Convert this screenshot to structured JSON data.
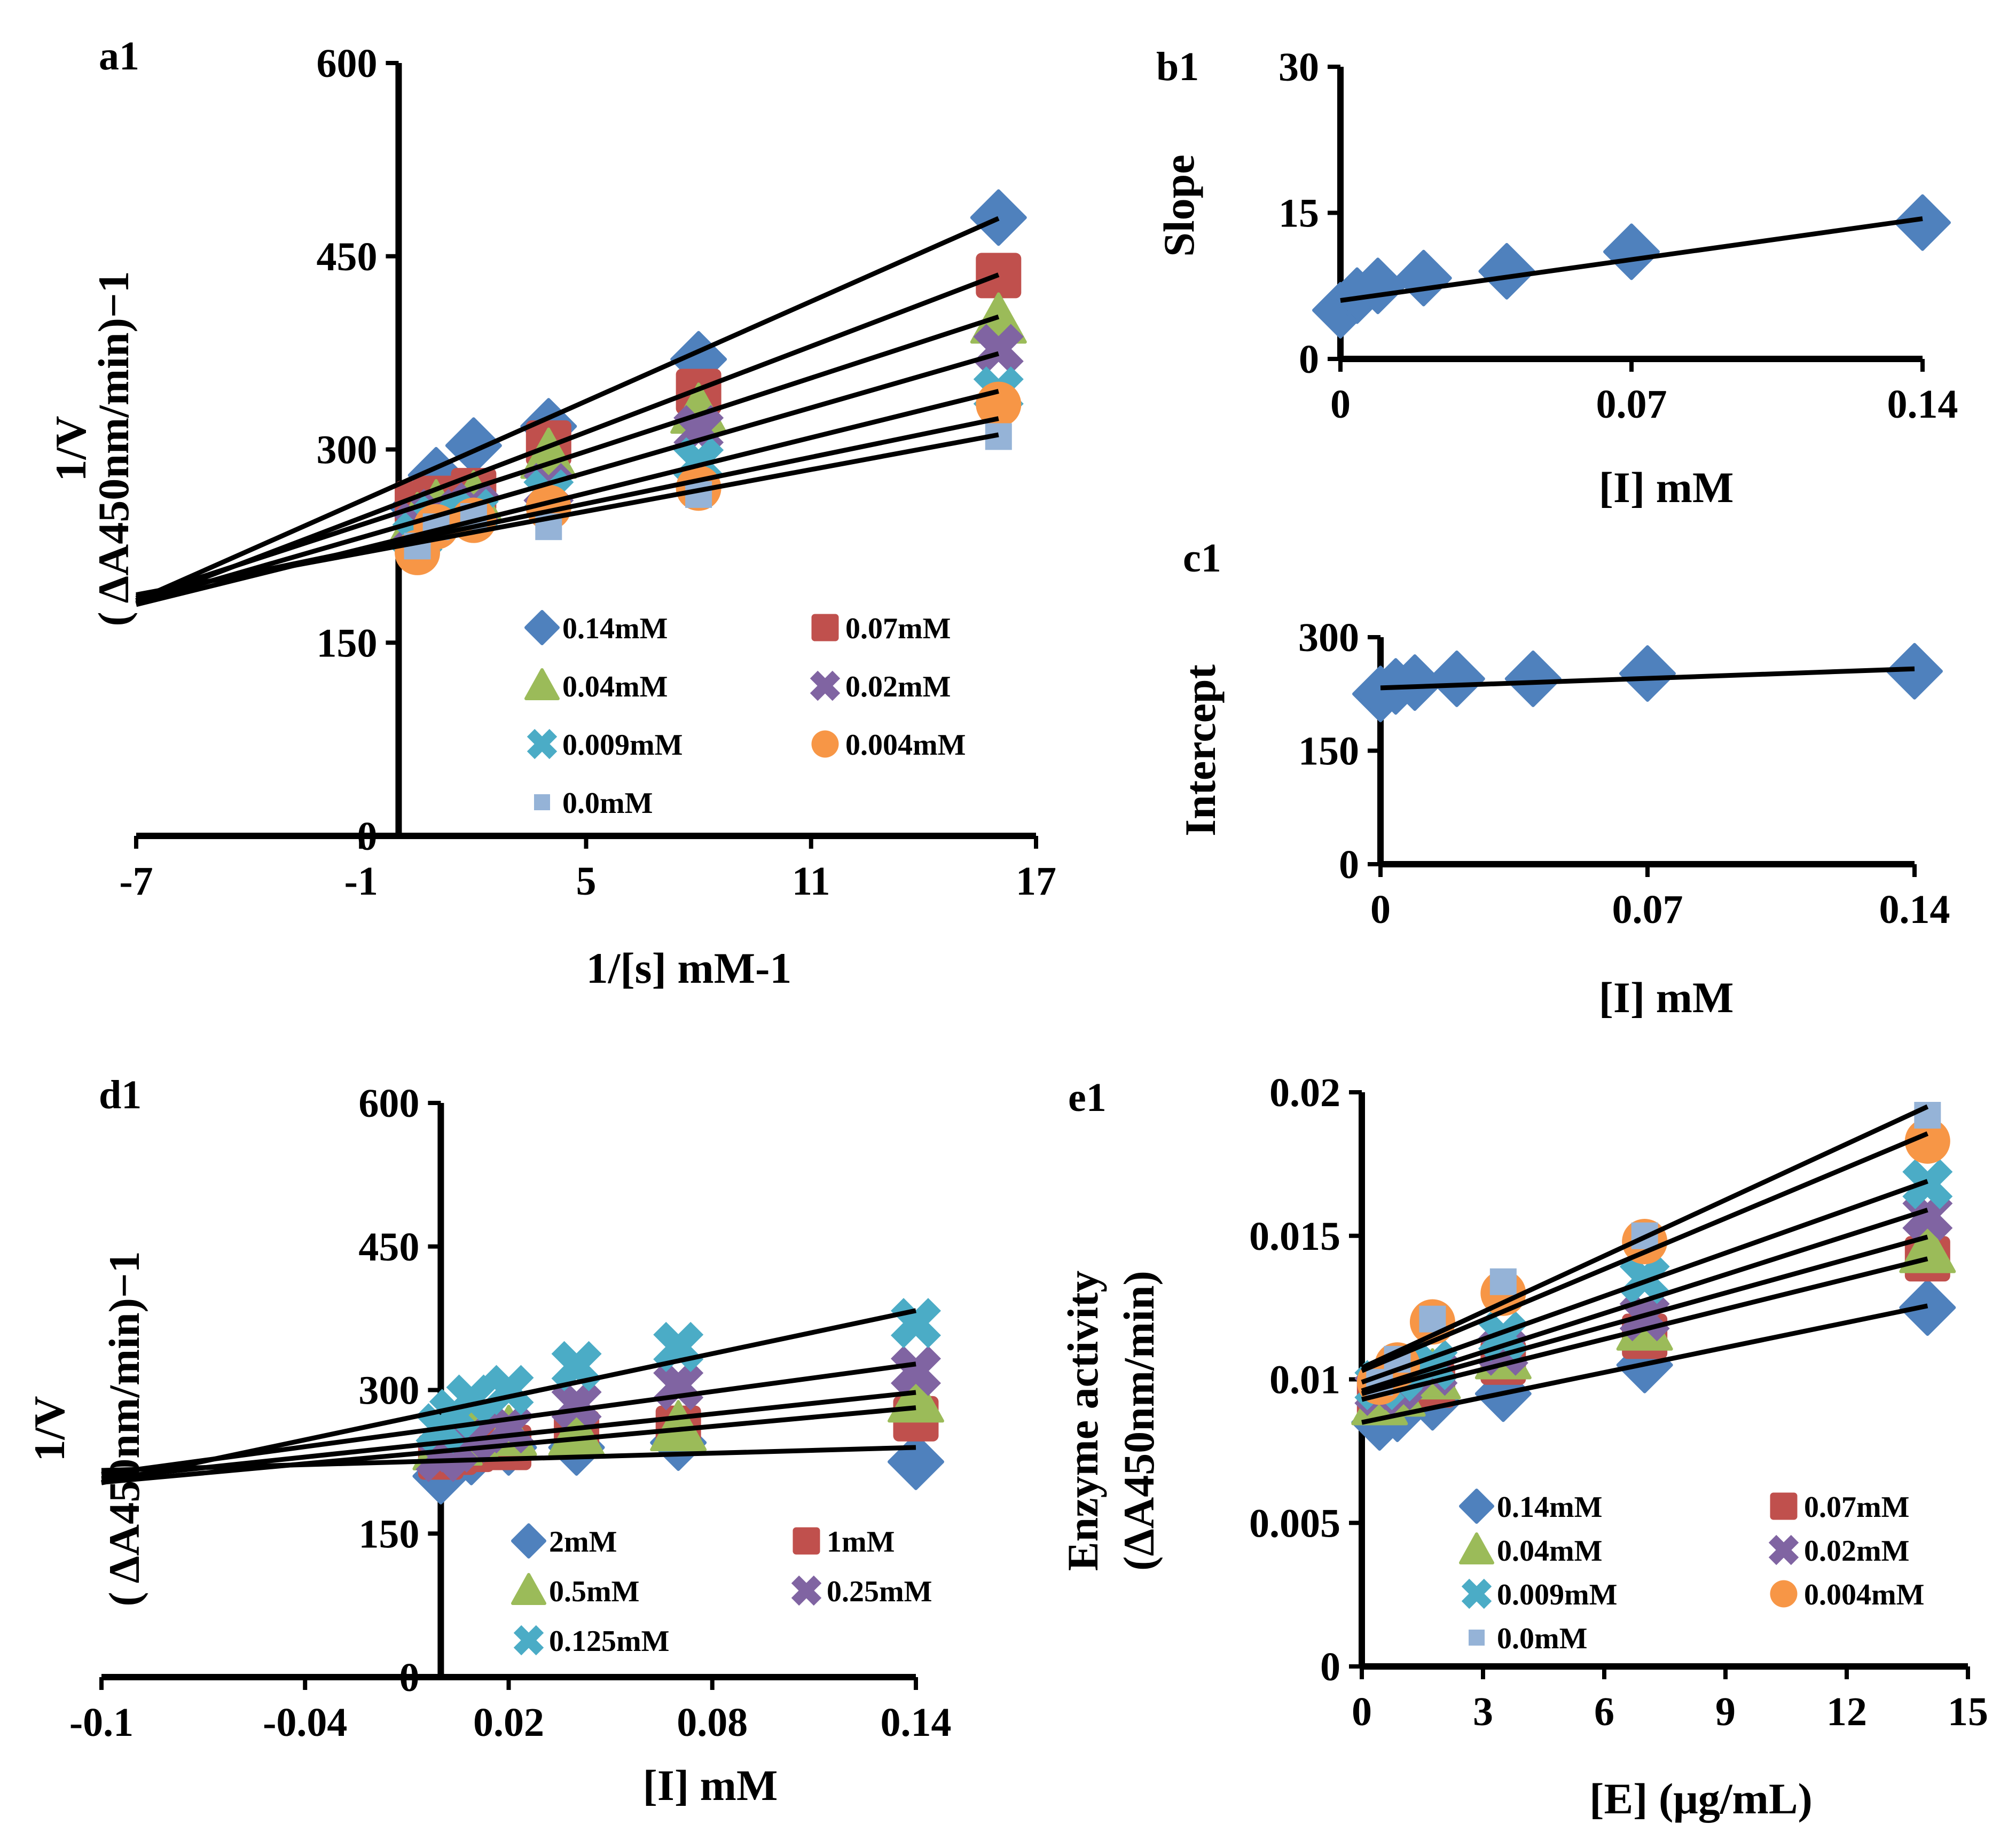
{
  "colors": {
    "blue": "#4f81bd",
    "red": "#c0504d",
    "green": "#9bbb59",
    "purple": "#8064a2",
    "teal": "#4bacc6",
    "orange": "#f79646",
    "lightblue": "#95b3d7",
    "line": "#000000"
  },
  "chart_data": [
    {
      "id": "a1",
      "panel_label": "a1",
      "type": "scatter",
      "xlabel": "1/[s] mM-1",
      "ylabel_line1": "1/V",
      "ylabel_line2": "( ΔA450nm/min)−1",
      "xlim": [
        -7,
        17
      ],
      "ylim": [
        0,
        600
      ],
      "xticks": [
        "-7",
        "-1",
        "5",
        "11",
        "17"
      ],
      "yticks": [
        "0",
        "150",
        "300",
        "450",
        "600"
      ],
      "fit_range": [
        -7,
        16
      ],
      "legend_cols": 2,
      "series": [
        {
          "name": "0.14mM",
          "color": "blue",
          "marker": "diamond",
          "x": [
            0.5,
            1,
            2,
            4,
            8,
            16
          ],
          "y": [
            255,
            280,
            303,
            318,
            370,
            480
          ],
          "fit": [
            12.9,
            273
          ]
        },
        {
          "name": "0.07mM",
          "color": "red",
          "marker": "square",
          "x": [
            0.5,
            1,
            2,
            4,
            8,
            16
          ],
          "y": [
            258,
            262,
            268,
            305,
            345,
            435
          ],
          "fit": [
            11.1,
            258
          ]
        },
        {
          "name": "0.04mM",
          "color": "green",
          "marker": "triangle",
          "x": [
            0.5,
            1,
            2,
            4,
            8,
            16
          ],
          "y": [
            245,
            255,
            262,
            295,
            330,
            400
          ],
          "fit": [
            9.5,
            251
          ]
        },
        {
          "name": "0.02mM",
          "color": "purple",
          "marker": "x",
          "x": [
            0.5,
            1,
            2,
            4,
            8,
            16
          ],
          "y": [
            240,
            250,
            255,
            270,
            315,
            378
          ],
          "fit": [
            8.4,
            240
          ]
        },
        {
          "name": "0.009mM",
          "color": "teal",
          "marker": "x",
          "x": [
            0.5,
            1,
            2,
            4,
            8,
            16
          ],
          "y": [
            232,
            245,
            250,
            265,
            290,
            345
          ],
          "fit": [
            7.2,
            230
          ]
        },
        {
          "name": "0.004mM",
          "color": "orange",
          "marker": "circle",
          "x": [
            0.5,
            1,
            2,
            4,
            8,
            16
          ],
          "y": [
            220,
            240,
            245,
            255,
            270,
            335
          ],
          "fit": [
            6.0,
            228
          ]
        },
        {
          "name": "0.0mM",
          "color": "lightblue",
          "marker": "smallsquare",
          "x": [
            0.5,
            1,
            2,
            4,
            8,
            16
          ],
          "y": [
            225,
            240,
            248,
            240,
            265,
            310
          ],
          "fit": [
            5.4,
            225
          ]
        }
      ]
    },
    {
      "id": "b1",
      "panel_label": "b1",
      "type": "scatter",
      "xlabel": "[I] mM",
      "ylabel_line1": "Slope",
      "xlim": [
        0,
        0.14
      ],
      "ylim": [
        0,
        30
      ],
      "xticks": [
        "0",
        "0.07",
        "0.14"
      ],
      "yticks": [
        "0",
        "15",
        "30"
      ],
      "fit_range": [
        0,
        0.14
      ],
      "series": [
        {
          "name": "Slope",
          "color": "blue",
          "marker": "diamond",
          "x": [
            0,
            0.004,
            0.009,
            0.02,
            0.04,
            0.07,
            0.14
          ],
          "y": [
            5.0,
            6.5,
            7.5,
            8.3,
            9.0,
            11.0,
            14.0
          ],
          "fit": [
            60,
            6.0
          ]
        }
      ]
    },
    {
      "id": "c1",
      "panel_label": "c1",
      "type": "scatter",
      "xlabel": "[I] mM",
      "ylabel_line1": "Intercept",
      "xlim": [
        0,
        0.14
      ],
      "ylim": [
        0,
        300
      ],
      "xticks": [
        "0",
        "0.07",
        "0.14"
      ],
      "yticks": [
        "0",
        "150",
        "300"
      ],
      "fit_range": [
        0,
        0.14
      ],
      "series": [
        {
          "name": "Intercept",
          "color": "blue",
          "marker": "diamond",
          "x": [
            0,
            0.004,
            0.009,
            0.02,
            0.04,
            0.07,
            0.14
          ],
          "y": [
            225,
            235,
            240,
            245,
            245,
            252,
            255
          ],
          "fit": [
            180,
            233
          ]
        }
      ]
    },
    {
      "id": "d1",
      "panel_label": "d1",
      "type": "scatter",
      "xlabel": "[I] mM",
      "ylabel_line1": "1/V",
      "ylabel_line2": "( ΔA450nm/min)−1",
      "xlim": [
        -0.1,
        0.14
      ],
      "ylim": [
        0,
        600
      ],
      "xticks": [
        "-0.1",
        "-0.04",
        "0.02",
        "0.08",
        "0.14"
      ],
      "yticks": [
        "0",
        "150",
        "300",
        "450",
        "600"
      ],
      "fit_range": [
        -0.1,
        0.14
      ],
      "legend_cols": 2,
      "series": [
        {
          "name": "2mM",
          "color": "blue",
          "marker": "diamond",
          "x": [
            0,
            0.004,
            0.009,
            0.02,
            0.04,
            0.07,
            0.14
          ],
          "y": [
            210,
            225,
            230,
            240,
            240,
            245,
            225
          ],
          "fit": [
            100,
            226
          ]
        },
        {
          "name": "1mM",
          "color": "red",
          "marker": "square",
          "x": [
            0,
            0.004,
            0.009,
            0.02,
            0.04,
            0.07,
            0.14
          ],
          "y": [
            230,
            235,
            238,
            240,
            255,
            260,
            270
          ],
          "fit": [
            325,
            236
          ]
        },
        {
          "name": "0.5mM",
          "color": "green",
          "marker": "triangle",
          "x": [
            0,
            0.004,
            0.009,
            0.02,
            0.04,
            0.07,
            0.14
          ],
          "y": [
            240,
            245,
            250,
            255,
            255,
            260,
            290
          ],
          "fit": [
            375,
            245
          ]
        },
        {
          "name": "0.25mM",
          "color": "purple",
          "marker": "x",
          "x": [
            0,
            0.004,
            0.009,
            0.02,
            0.04,
            0.07,
            0.14
          ],
          "y": [
            230,
            240,
            250,
            260,
            285,
            305,
            320
          ],
          "fit": [
            480,
            260
          ]
        },
        {
          "name": "0.125mM",
          "color": "teal",
          "marker": "x",
          "x": [
            0,
            0.004,
            0.009,
            0.02,
            0.04,
            0.07,
            0.14
          ],
          "y": [
            260,
            275,
            290,
            300,
            325,
            345,
            370
          ],
          "fit": [
            750,
            278
          ]
        }
      ]
    },
    {
      "id": "e1",
      "panel_label": "e1",
      "type": "scatter",
      "xlabel": "[E] (μg/mL)",
      "ylabel_line1": "Enzyme activity",
      "ylabel_line2": "(ΔA450nm/min)",
      "xlim": [
        0,
        15
      ],
      "ylim": [
        0,
        0.02
      ],
      "xticks": [
        "0",
        "3",
        "6",
        "9",
        "12",
        "15"
      ],
      "yticks": [
        "0",
        "0.005",
        "0.01",
        "0.015",
        "0.02"
      ],
      "fit_range": [
        0,
        14
      ],
      "legend_cols": 2,
      "series": [
        {
          "name": "0.14mM",
          "color": "blue",
          "marker": "diamond",
          "x": [
            0.44,
            0.88,
            1.75,
            3.5,
            7,
            14
          ],
          "y": [
            0.0085,
            0.0088,
            0.0092,
            0.0095,
            0.0105,
            0.0125
          ],
          "fit": [
            0.00029,
            0.0085
          ]
        },
        {
          "name": "0.07mM",
          "color": "red",
          "marker": "square",
          "x": [
            0.44,
            0.88,
            1.75,
            3.5,
            7,
            14
          ],
          "y": [
            0.0093,
            0.0095,
            0.0098,
            0.0106,
            0.0115,
            0.0142
          ],
          "fit": [
            0.00035,
            0.0093
          ]
        },
        {
          "name": "0.04mM",
          "color": "green",
          "marker": "triangle",
          "x": [
            0.44,
            0.88,
            1.75,
            3.5,
            7,
            14
          ],
          "y": [
            0.0092,
            0.0095,
            0.0101,
            0.0108,
            0.0118,
            0.0145
          ],
          "fit": [
            0.00039,
            0.0095
          ]
        },
        {
          "name": "0.02mM",
          "color": "purple",
          "marker": "x",
          "x": [
            0.44,
            0.88,
            1.75,
            3.5,
            7,
            14
          ],
          "y": [
            0.0096,
            0.0098,
            0.0103,
            0.011,
            0.0122,
            0.0157
          ],
          "fit": [
            0.00045,
            0.0096
          ]
        },
        {
          "name": "0.009mM",
          "color": "teal",
          "marker": "x",
          "x": [
            0.44,
            0.88,
            1.75,
            3.5,
            7,
            14
          ],
          "y": [
            0.0098,
            0.0101,
            0.0105,
            0.0115,
            0.0135,
            0.0168
          ],
          "fit": [
            0.0005,
            0.0099
          ]
        },
        {
          "name": "0.004mM",
          "color": "orange",
          "marker": "circle",
          "x": [
            0.44,
            0.88,
            1.75,
            3.5,
            7,
            14
          ],
          "y": [
            0.0099,
            0.0105,
            0.012,
            0.013,
            0.0148,
            0.0183
          ],
          "fit": [
            0.00059,
            0.0103
          ]
        },
        {
          "name": "0.0mM",
          "color": "lightblue",
          "marker": "smallsquare",
          "x": [
            0.44,
            0.88,
            1.75,
            3.5,
            7,
            14
          ],
          "y": [
            0.0099,
            0.0107,
            0.0121,
            0.0134,
            0.015,
            0.0192
          ],
          "fit": [
            0.00065,
            0.0104
          ]
        }
      ]
    }
  ]
}
